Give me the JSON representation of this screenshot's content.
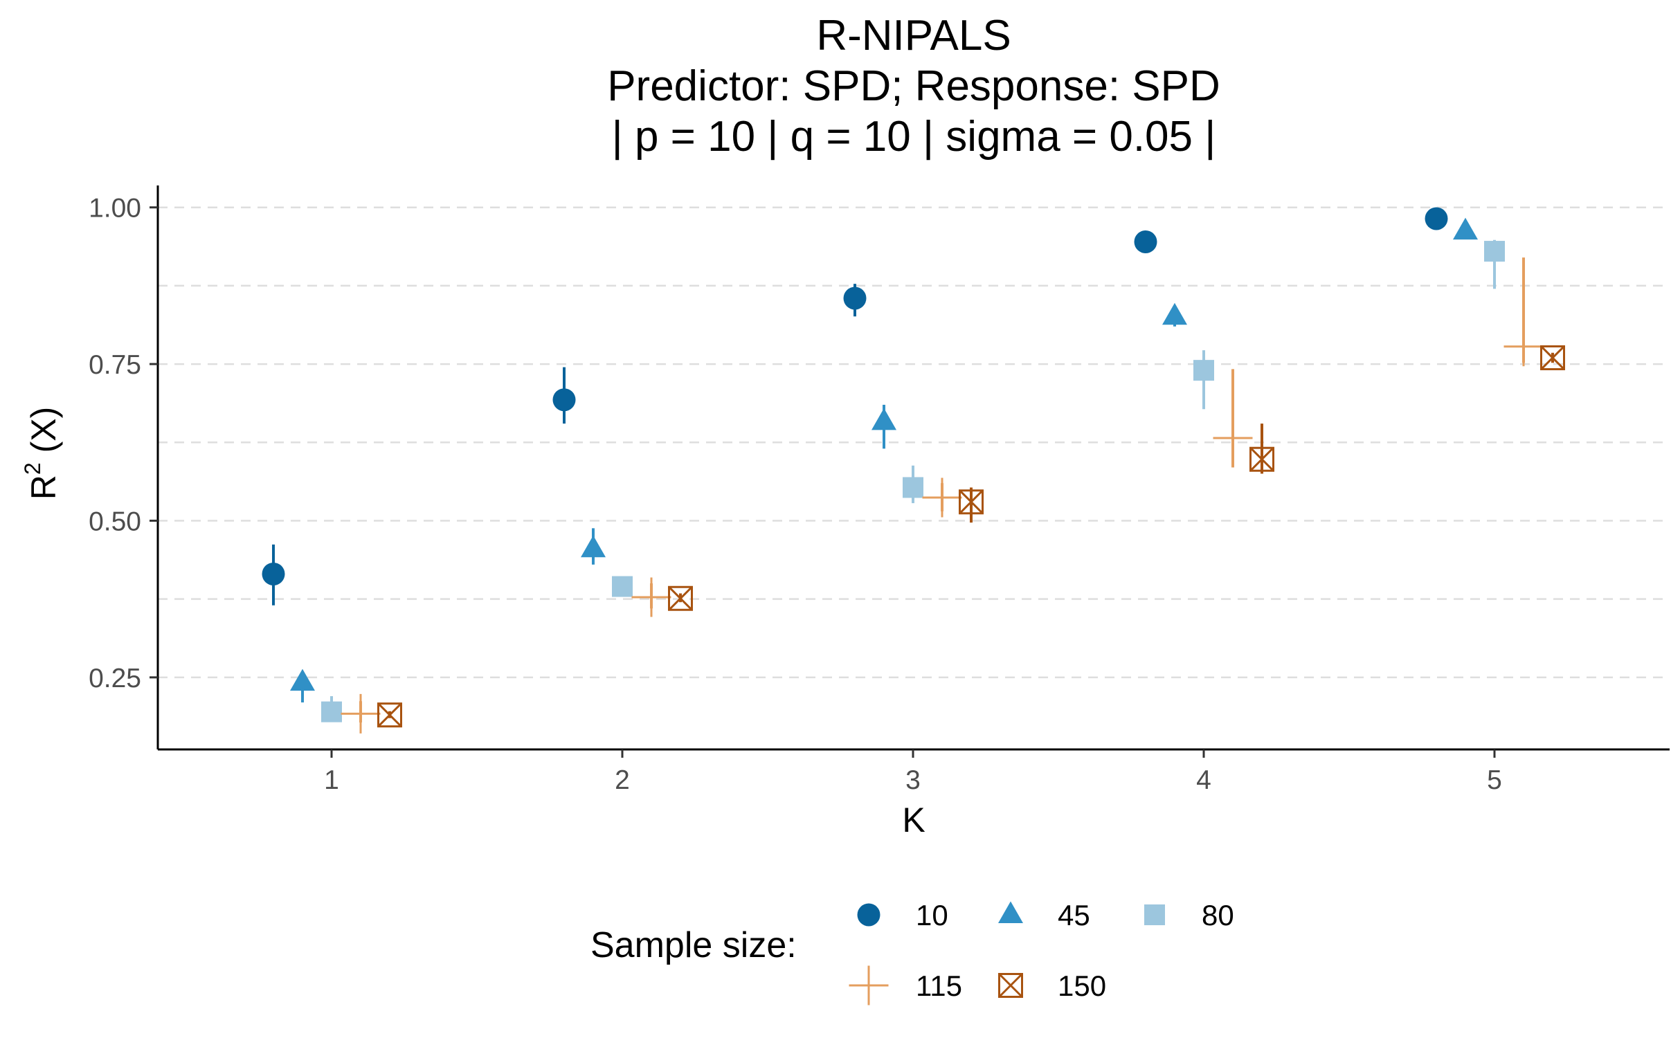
{
  "chart_data": {
    "type": "scatter",
    "title": [
      "R-NIPALS",
      "Predictor: SPD; Response: SPD",
      "| p = 10 | q = 10 | sigma = 0.05 |"
    ],
    "xlabel": "K",
    "ylabel": {
      "base": "R",
      "sup": "2",
      "rest": " (X)"
    },
    "x_categories": [
      "1",
      "2",
      "3",
      "4",
      "5"
    ],
    "y_ticks": [
      "0.25",
      "0.50",
      "0.75",
      "1.00"
    ],
    "ylim": [
      0.135,
      1.035
    ],
    "grid": "horizontal dashed",
    "legend": {
      "title": "Sample size:",
      "position": "bottom",
      "entries": [
        "10",
        "45",
        "80",
        "115",
        "150"
      ]
    },
    "series": [
      {
        "name": "10",
        "marker": "circle",
        "color": "#08629a",
        "offset": -0.2,
        "points": [
          {
            "k": 1,
            "y": 0.415,
            "lo": 0.365,
            "hi": 0.462
          },
          {
            "k": 2,
            "y": 0.693,
            "lo": 0.655,
            "hi": 0.745
          },
          {
            "k": 3,
            "y": 0.855,
            "lo": 0.826,
            "hi": 0.878
          },
          {
            "k": 4,
            "y": 0.945,
            "lo": 0.945,
            "hi": 0.945
          },
          {
            "k": 5,
            "y": 0.982,
            "lo": 0.982,
            "hi": 0.982
          }
        ]
      },
      {
        "name": "45",
        "marker": "triangle",
        "color": "#3090c6",
        "offset": -0.1,
        "points": [
          {
            "k": 1,
            "y": 0.242,
            "lo": 0.21,
            "hi": 0.258
          },
          {
            "k": 2,
            "y": 0.455,
            "lo": 0.43,
            "hi": 0.488
          },
          {
            "k": 3,
            "y": 0.658,
            "lo": 0.615,
            "hi": 0.685
          },
          {
            "k": 4,
            "y": 0.826,
            "lo": 0.81,
            "hi": 0.835
          },
          {
            "k": 5,
            "y": 0.962,
            "lo": 0.955,
            "hi": 0.968
          }
        ]
      },
      {
        "name": "80",
        "marker": "square",
        "color": "#9cc6de",
        "offset": 0.0,
        "points": [
          {
            "k": 1,
            "y": 0.195,
            "lo": 0.19,
            "hi": 0.22
          },
          {
            "k": 2,
            "y": 0.395,
            "lo": 0.38,
            "hi": 0.41
          },
          {
            "k": 3,
            "y": 0.553,
            "lo": 0.528,
            "hi": 0.588
          },
          {
            "k": 4,
            "y": 0.74,
            "lo": 0.678,
            "hi": 0.772
          },
          {
            "k": 5,
            "y": 0.93,
            "lo": 0.87,
            "hi": 0.948
          }
        ]
      },
      {
        "name": "115",
        "marker": "plus",
        "color": "#e49e5e",
        "offset": 0.1,
        "points": [
          {
            "k": 1,
            "y": 0.192,
            "lo": 0.178,
            "hi": 0.212
          },
          {
            "k": 2,
            "y": 0.378,
            "lo": 0.36,
            "hi": 0.4
          },
          {
            "k": 3,
            "y": 0.537,
            "lo": 0.515,
            "hi": 0.56
          },
          {
            "k": 4,
            "y": 0.632,
            "lo": 0.585,
            "hi": 0.742
          },
          {
            "k": 5,
            "y": 0.778,
            "lo": 0.752,
            "hi": 0.92
          }
        ]
      },
      {
        "name": "150",
        "marker": "square-x",
        "color": "#a85310",
        "offset": 0.2,
        "points": [
          {
            "k": 1,
            "y": 0.19,
            "lo": 0.185,
            "hi": 0.196
          },
          {
            "k": 2,
            "y": 0.376,
            "lo": 0.37,
            "hi": 0.384
          },
          {
            "k": 3,
            "y": 0.53,
            "lo": 0.497,
            "hi": 0.553
          },
          {
            "k": 4,
            "y": 0.598,
            "lo": 0.575,
            "hi": 0.655
          },
          {
            "k": 5,
            "y": 0.76,
            "lo": 0.752,
            "hi": 0.768
          }
        ]
      }
    ]
  }
}
